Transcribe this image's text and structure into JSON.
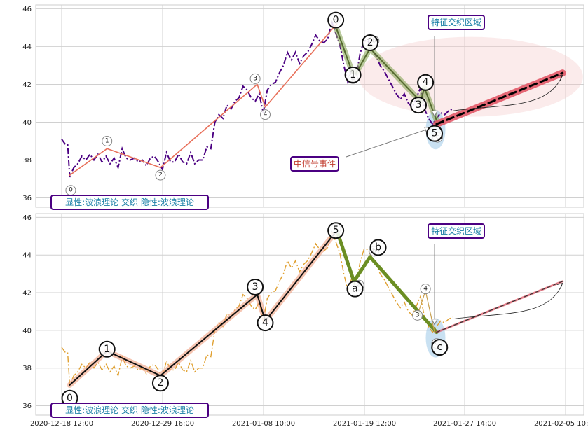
{
  "chart_data": [
    {
      "type": "line",
      "ylim": [
        35.5,
        46.2
      ],
      "yticks": [
        36,
        38,
        40,
        42,
        44,
        46
      ],
      "x_tick_labels": [
        "2020-12-18 12:00",
        "2020-12-29 16:00",
        "2021-01-08 10:00",
        "2021-01-19 12:00",
        "2021-01-27 14:00",
        "2021-02-05 10:00"
      ],
      "price_color": "#4b0082",
      "price": [
        [
          0.0,
          39.1
        ],
        [
          0.4,
          38.8
        ],
        [
          0.6,
          38.8
        ],
        [
          0.8,
          37.1
        ],
        [
          1.2,
          37.6
        ],
        [
          1.6,
          37.8
        ],
        [
          2.0,
          38.2
        ],
        [
          2.4,
          38.0
        ],
        [
          2.8,
          38.3
        ],
        [
          3.2,
          38.0
        ],
        [
          3.6,
          38.3
        ],
        [
          4.0,
          37.9
        ],
        [
          4.4,
          38.2
        ],
        [
          4.8,
          37.8
        ],
        [
          5.2,
          38.1
        ],
        [
          5.6,
          37.6
        ],
        [
          6.0,
          38.6
        ],
        [
          6.4,
          38.1
        ],
        [
          6.8,
          38.0
        ],
        [
          7.2,
          38.1
        ],
        [
          7.6,
          37.9
        ],
        [
          8.0,
          38.0
        ],
        [
          8.4,
          37.7
        ],
        [
          8.8,
          38.1
        ],
        [
          9.2,
          38.2
        ],
        [
          9.6,
          37.9
        ],
        [
          10.0,
          37.5
        ],
        [
          10.4,
          38.4
        ],
        [
          10.8,
          37.9
        ],
        [
          11.2,
          37.9
        ],
        [
          11.6,
          38.3
        ],
        [
          12.0,
          37.9
        ],
        [
          12.4,
          37.8
        ],
        [
          12.8,
          38.4
        ],
        [
          13.2,
          37.8
        ],
        [
          13.6,
          38.0
        ],
        [
          14.0,
          38.0
        ],
        [
          14.4,
          38.7
        ],
        [
          14.8,
          38.6
        ],
        [
          15.2,
          40.0
        ],
        [
          15.6,
          40.4
        ],
        [
          16.0,
          40.2
        ],
        [
          16.4,
          40.9
        ],
        [
          16.8,
          40.7
        ],
        [
          17.2,
          41.1
        ],
        [
          17.6,
          41.3
        ],
        [
          18.0,
          41.9
        ],
        [
          18.4,
          41.7
        ],
        [
          18.8,
          41.3
        ],
        [
          19.2,
          41.1
        ],
        [
          19.6,
          41.5
        ],
        [
          20.0,
          40.5
        ],
        [
          20.4,
          41.7
        ],
        [
          20.8,
          42.0
        ],
        [
          21.2,
          42.1
        ],
        [
          21.6,
          42.6
        ],
        [
          22.0,
          43.0
        ],
        [
          22.4,
          43.7
        ],
        [
          22.8,
          43.3
        ],
        [
          23.2,
          43.7
        ],
        [
          23.6,
          43.1
        ],
        [
          24.0,
          43.5
        ],
        [
          24.4,
          43.7
        ],
        [
          24.8,
          44.1
        ],
        [
          25.2,
          44.6
        ],
        [
          25.6,
          44.3
        ],
        [
          26.0,
          44.2
        ],
        [
          26.4,
          44.4
        ],
        [
          26.8,
          45.3
        ],
        [
          27.2,
          44.7
        ],
        [
          27.6,
          44.1
        ],
        [
          28.0,
          43.0
        ],
        [
          28.4,
          42.1
        ],
        [
          28.8,
          42.8
        ],
        [
          29.2,
          42.3
        ],
        [
          29.6,
          43.6
        ],
        [
          30.0,
          44.3
        ],
        [
          30.4,
          44.3
        ],
        [
          30.8,
          43.8
        ],
        [
          31.2,
          43.5
        ],
        [
          31.6,
          43.0
        ],
        [
          32.0,
          42.7
        ],
        [
          32.4,
          42.3
        ],
        [
          32.8,
          41.9
        ],
        [
          33.2,
          41.5
        ],
        [
          33.6,
          41.2
        ],
        [
          34.0,
          41.5
        ],
        [
          34.4,
          41.0
        ],
        [
          34.8,
          40.8
        ],
        [
          35.2,
          41.3
        ],
        [
          35.6,
          41.8
        ],
        [
          36.0,
          40.7
        ],
        [
          36.4,
          40.2
        ],
        [
          36.8,
          39.9
        ],
        [
          37.2,
          40.2
        ],
        [
          37.6,
          40.5
        ],
        [
          38.0,
          40.4
        ],
        [
          38.4,
          40.6
        ],
        [
          38.8,
          40.7
        ]
      ],
      "waves": [
        {
          "color": "#e8705a",
          "width": 1.6,
          "halo": false,
          "points": [
            [
              0.8,
              37.2
            ],
            [
              4.5,
              38.6
            ],
            [
              9.8,
              37.6
            ],
            [
              19.4,
              42.0
            ],
            [
              20.2,
              40.8
            ],
            [
              27.3,
              45.2
            ]
          ]
        },
        {
          "color": "#556b2f",
          "width": 2,
          "halo": true,
          "halo_color": "#8aa65a",
          "points": [
            [
              27.3,
              44.9
            ],
            [
              29.0,
              42.4
            ],
            [
              30.6,
              43.9
            ],
            [
              35.6,
              41.1
            ],
            [
              36.0,
              41.8
            ],
            [
              37.2,
              40.1
            ]
          ]
        },
        {
          "color": "#e05060",
          "width": 10,
          "halo": false,
          "opacity": 0.85,
          "points": [
            [
              37.2,
              39.9
            ],
            [
              49.7,
              42.6
            ]
          ]
        },
        {
          "color": "#000000",
          "width": 3,
          "halo": false,
          "dash": "10,6",
          "points": [
            [
              37.2,
              39.9
            ],
            [
              49.7,
              42.6
            ]
          ]
        }
      ],
      "wave_labels": [
        {
          "text": "0",
          "x": 0.9,
          "y": 36.4,
          "size": "small"
        },
        {
          "text": "1",
          "x": 4.5,
          "y": 39.0,
          "size": "small"
        },
        {
          "text": "2",
          "x": 9.8,
          "y": 37.2,
          "size": "small"
        },
        {
          "text": "3",
          "x": 19.2,
          "y": 42.3,
          "size": "small"
        },
        {
          "text": "4",
          "x": 20.2,
          "y": 40.4,
          "size": "small"
        },
        {
          "text": "5",
          "x": 27.2,
          "y": 45.5,
          "size": "small"
        },
        {
          "text": "0",
          "x": 27.2,
          "y": 45.4,
          "size": "large"
        },
        {
          "text": "a",
          "x": 28.9,
          "y": 42.3,
          "size": "small"
        },
        {
          "text": "1",
          "x": 28.9,
          "y": 42.5,
          "size": "large"
        },
        {
          "text": "b",
          "x": 31.0,
          "y": 44.3,
          "size": "small"
        },
        {
          "text": "2",
          "x": 30.6,
          "y": 44.2,
          "size": "large"
        },
        {
          "text": "3",
          "x": 35.4,
          "y": 40.9,
          "size": "large"
        },
        {
          "text": "4",
          "x": 36.1,
          "y": 42.1,
          "size": "large"
        },
        {
          "text": "c",
          "x": 37.3,
          "y": 39.2,
          "size": "small"
        },
        {
          "text": "5",
          "x": 37.0,
          "y": 39.4,
          "size": "large"
        }
      ],
      "overlay_box": {
        "text": "显性:波浪理论 交织 隐性:波浪理论"
      },
      "zone_label": {
        "text": "特征交织区域"
      },
      "event_label": {
        "text": "中信号事件"
      }
    },
    {
      "type": "line",
      "ylim": [
        35.5,
        46.2
      ],
      "yticks": [
        36,
        38,
        40,
        42,
        44,
        46
      ],
      "x_tick_labels": [
        "2020-12-18 12:00",
        "2020-12-29 16:00",
        "2021-01-08 10:00",
        "2021-01-19 12:00",
        "2021-01-27 14:00",
        "2021-02-05 10:00"
      ],
      "price_color": "#e0a030",
      "price": [
        [
          0.0,
          39.1
        ],
        [
          0.4,
          38.8
        ],
        [
          0.6,
          38.8
        ],
        [
          0.8,
          37.1
        ],
        [
          1.2,
          37.6
        ],
        [
          1.6,
          37.8
        ],
        [
          2.0,
          38.2
        ],
        [
          2.4,
          38.0
        ],
        [
          2.8,
          38.3
        ],
        [
          3.2,
          38.0
        ],
        [
          3.6,
          38.3
        ],
        [
          4.0,
          37.9
        ],
        [
          4.4,
          38.2
        ],
        [
          4.8,
          37.8
        ],
        [
          5.2,
          38.1
        ],
        [
          5.6,
          37.6
        ],
        [
          6.0,
          38.6
        ],
        [
          6.4,
          38.1
        ],
        [
          6.8,
          38.0
        ],
        [
          7.2,
          38.1
        ],
        [
          7.6,
          37.9
        ],
        [
          8.0,
          38.0
        ],
        [
          8.4,
          37.7
        ],
        [
          8.8,
          38.1
        ],
        [
          9.2,
          38.2
        ],
        [
          9.6,
          37.9
        ],
        [
          10.0,
          37.5
        ],
        [
          10.4,
          38.4
        ],
        [
          10.8,
          37.9
        ],
        [
          11.2,
          37.9
        ],
        [
          11.6,
          38.3
        ],
        [
          12.0,
          37.9
        ],
        [
          12.4,
          37.8
        ],
        [
          12.8,
          38.4
        ],
        [
          13.2,
          37.8
        ],
        [
          13.6,
          38.0
        ],
        [
          14.0,
          38.0
        ],
        [
          14.4,
          38.7
        ],
        [
          14.8,
          38.6
        ],
        [
          15.2,
          40.0
        ],
        [
          15.6,
          40.4
        ],
        [
          16.0,
          40.2
        ],
        [
          16.4,
          40.9
        ],
        [
          16.8,
          40.7
        ],
        [
          17.2,
          41.1
        ],
        [
          17.6,
          41.3
        ],
        [
          18.0,
          41.9
        ],
        [
          18.4,
          41.7
        ],
        [
          18.8,
          41.3
        ],
        [
          19.2,
          41.1
        ],
        [
          19.6,
          41.5
        ],
        [
          20.0,
          40.5
        ],
        [
          20.4,
          41.7
        ],
        [
          20.8,
          42.0
        ],
        [
          21.2,
          42.1
        ],
        [
          21.6,
          42.6
        ],
        [
          22.0,
          43.0
        ],
        [
          22.4,
          43.7
        ],
        [
          22.8,
          43.3
        ],
        [
          23.2,
          43.7
        ],
        [
          23.6,
          43.1
        ],
        [
          24.0,
          43.5
        ],
        [
          24.4,
          43.7
        ],
        [
          24.8,
          44.1
        ],
        [
          25.2,
          44.6
        ],
        [
          25.6,
          44.3
        ],
        [
          26.0,
          44.2
        ],
        [
          26.4,
          44.4
        ],
        [
          26.8,
          45.3
        ],
        [
          27.2,
          44.7
        ],
        [
          27.6,
          44.1
        ],
        [
          28.0,
          43.0
        ],
        [
          28.4,
          42.1
        ],
        [
          28.8,
          42.8
        ],
        [
          29.2,
          42.3
        ],
        [
          29.6,
          43.6
        ],
        [
          30.0,
          44.3
        ],
        [
          30.4,
          44.3
        ],
        [
          30.8,
          43.8
        ],
        [
          31.2,
          43.5
        ],
        [
          31.6,
          43.0
        ],
        [
          32.0,
          42.7
        ],
        [
          32.4,
          42.3
        ],
        [
          32.8,
          41.9
        ],
        [
          33.2,
          41.5
        ],
        [
          33.6,
          41.2
        ],
        [
          34.0,
          41.5
        ],
        [
          34.4,
          41.0
        ],
        [
          34.8,
          40.8
        ],
        [
          35.2,
          41.3
        ],
        [
          35.6,
          41.8
        ],
        [
          36.0,
          40.7
        ],
        [
          36.4,
          40.2
        ],
        [
          36.8,
          39.9
        ],
        [
          37.2,
          40.2
        ],
        [
          37.6,
          40.5
        ],
        [
          38.0,
          40.4
        ],
        [
          38.4,
          40.6
        ],
        [
          38.8,
          40.7
        ]
      ],
      "waves": [
        {
          "color": "#111111",
          "width": 2,
          "halo": true,
          "halo_color": "#f0a080",
          "points": [
            [
              0.8,
              37.1
            ],
            [
              4.5,
              38.9
            ],
            [
              9.8,
              37.6
            ],
            [
              19.4,
              41.9
            ],
            [
              20.2,
              40.5
            ],
            [
              27.3,
              45.3
            ]
          ]
        },
        {
          "color": "#6b8e23",
          "width": 5,
          "halo": false,
          "points": [
            [
              27.3,
              45.3
            ],
            [
              29.0,
              42.6
            ],
            [
              30.6,
              43.9
            ],
            [
              37.2,
              39.9
            ]
          ]
        },
        {
          "color": "#c8a050",
          "width": 1.2,
          "halo": false,
          "points": [
            [
              35.3,
              40.8
            ],
            [
              36.1,
              42.1
            ],
            [
              37.0,
              39.9
            ]
          ]
        },
        {
          "color": "#e05060",
          "width": 3,
          "halo": false,
          "opacity": 0.7,
          "points": [
            [
              37.2,
              39.9
            ],
            [
              49.7,
              42.6
            ]
          ]
        },
        {
          "color": "#333333",
          "width": 1.2,
          "halo": false,
          "dash": "5,4",
          "points": [
            [
              37.2,
              39.9
            ],
            [
              49.7,
              42.6
            ]
          ]
        }
      ],
      "wave_labels": [
        {
          "text": "0",
          "x": 0.8,
          "y": 36.4,
          "size": "large"
        },
        {
          "text": "1",
          "x": 4.5,
          "y": 39.0,
          "size": "large"
        },
        {
          "text": "2",
          "x": 9.8,
          "y": 37.2,
          "size": "large"
        },
        {
          "text": "3",
          "x": 19.2,
          "y": 42.3,
          "size": "large"
        },
        {
          "text": "4",
          "x": 20.2,
          "y": 40.4,
          "size": "large"
        },
        {
          "text": "5",
          "x": 27.2,
          "y": 45.4,
          "size": "small"
        },
        {
          "text": "5",
          "x": 27.2,
          "y": 45.3,
          "size": "large"
        },
        {
          "text": "a",
          "x": 29.5,
          "y": 42.4,
          "size": "small"
        },
        {
          "text": "a",
          "x": 29.1,
          "y": 42.2,
          "size": "large"
        },
        {
          "text": "b",
          "x": 31.0,
          "y": 44.2,
          "size": "small"
        },
        {
          "text": "b",
          "x": 31.4,
          "y": 44.4,
          "size": "large"
        },
        {
          "text": "3",
          "x": 35.3,
          "y": 40.8,
          "size": "small"
        },
        {
          "text": "4",
          "x": 36.1,
          "y": 42.2,
          "size": "small"
        },
        {
          "text": "c",
          "x": 37.2,
          "y": 39.3,
          "size": "small"
        },
        {
          "text": "c",
          "x": 37.5,
          "y": 39.1,
          "size": "large"
        }
      ],
      "overlay_box": {
        "text": "显性:波浪理论 交织 隐性:波浪理论"
      },
      "zone_label": {
        "text": "特征交织区域"
      }
    }
  ]
}
